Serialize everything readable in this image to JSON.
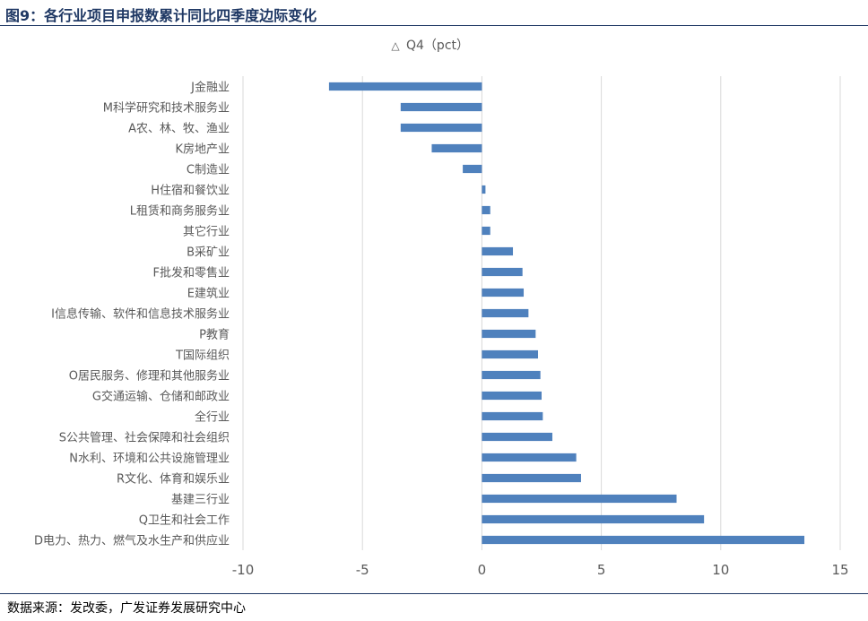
{
  "figure": {
    "title": "图9：各行业项目申报数累计同比四季度边际变化",
    "source": "数据来源：发改委，广发证券发展研究中心"
  },
  "chart_data": {
    "type": "bar",
    "orientation": "horizontal",
    "legend": {
      "marker": "△",
      "label": "Q4（pct）",
      "position": "top-center"
    },
    "series": [
      {
        "name": "Q4（pct）",
        "color": "#4f81bd"
      }
    ],
    "categories": [
      "J金融业",
      "M科学研究和技术服务业",
      "A农、林、牧、渔业",
      "K房地产业",
      "C制造业",
      "H住宿和餐饮业",
      "L租赁和商务服务业",
      "其它行业",
      "B采矿业",
      "F批发和零售业",
      "E建筑业",
      "I信息传输、软件和信息技术服务业",
      "P教育",
      "T国际组织",
      "O居民服务、修理和其他服务业",
      "G交通运输、仓储和邮政业",
      "全行业",
      "S公共管理、社会保障和社会组织",
      "N水利、环境和公共设施管理业",
      "R文化、体育和娱乐业",
      "基建三行业",
      "Q卫生和社会工作",
      "D电力、热力、燃气及水生产和供应业"
    ],
    "values": [
      -6.4,
      -3.4,
      -3.4,
      -2.1,
      -0.8,
      0.15,
      0.35,
      0.35,
      1.3,
      1.7,
      1.75,
      1.95,
      2.25,
      2.35,
      2.45,
      2.5,
      2.55,
      2.95,
      3.95,
      4.15,
      8.15,
      9.3,
      13.5
    ],
    "xlim": [
      -10,
      15
    ],
    "xticks": [
      "-10",
      "-5",
      "0",
      "5",
      "10",
      "15"
    ],
    "grid": "vertical"
  }
}
